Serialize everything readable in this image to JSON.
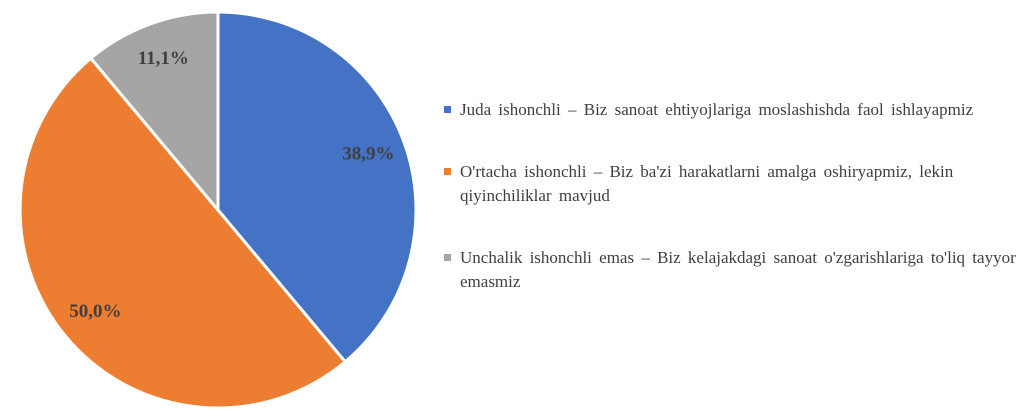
{
  "chart_data": {
    "type": "pie",
    "categories": [
      "Juda ishonchli – Biz sanoat ehtiyojlariga moslashishda faol ishlayapmiz",
      "O'rtacha ishonchli – Biz ba'zi harakatlarni amalga oshiryapmiz, lekin qiyinchiliklar mavjud",
      "Unchalik ishonchli emas – Biz kelajakdagi sanoat o'zgarishlariga to'liq tayyor emasmiz"
    ],
    "values": [
      38.9,
      50.0,
      11.1
    ],
    "value_labels": [
      "38,9%",
      "50,0%",
      "11,1%"
    ],
    "colors": [
      "#4472c4",
      "#ed7d31",
      "#a5a5a5"
    ]
  }
}
